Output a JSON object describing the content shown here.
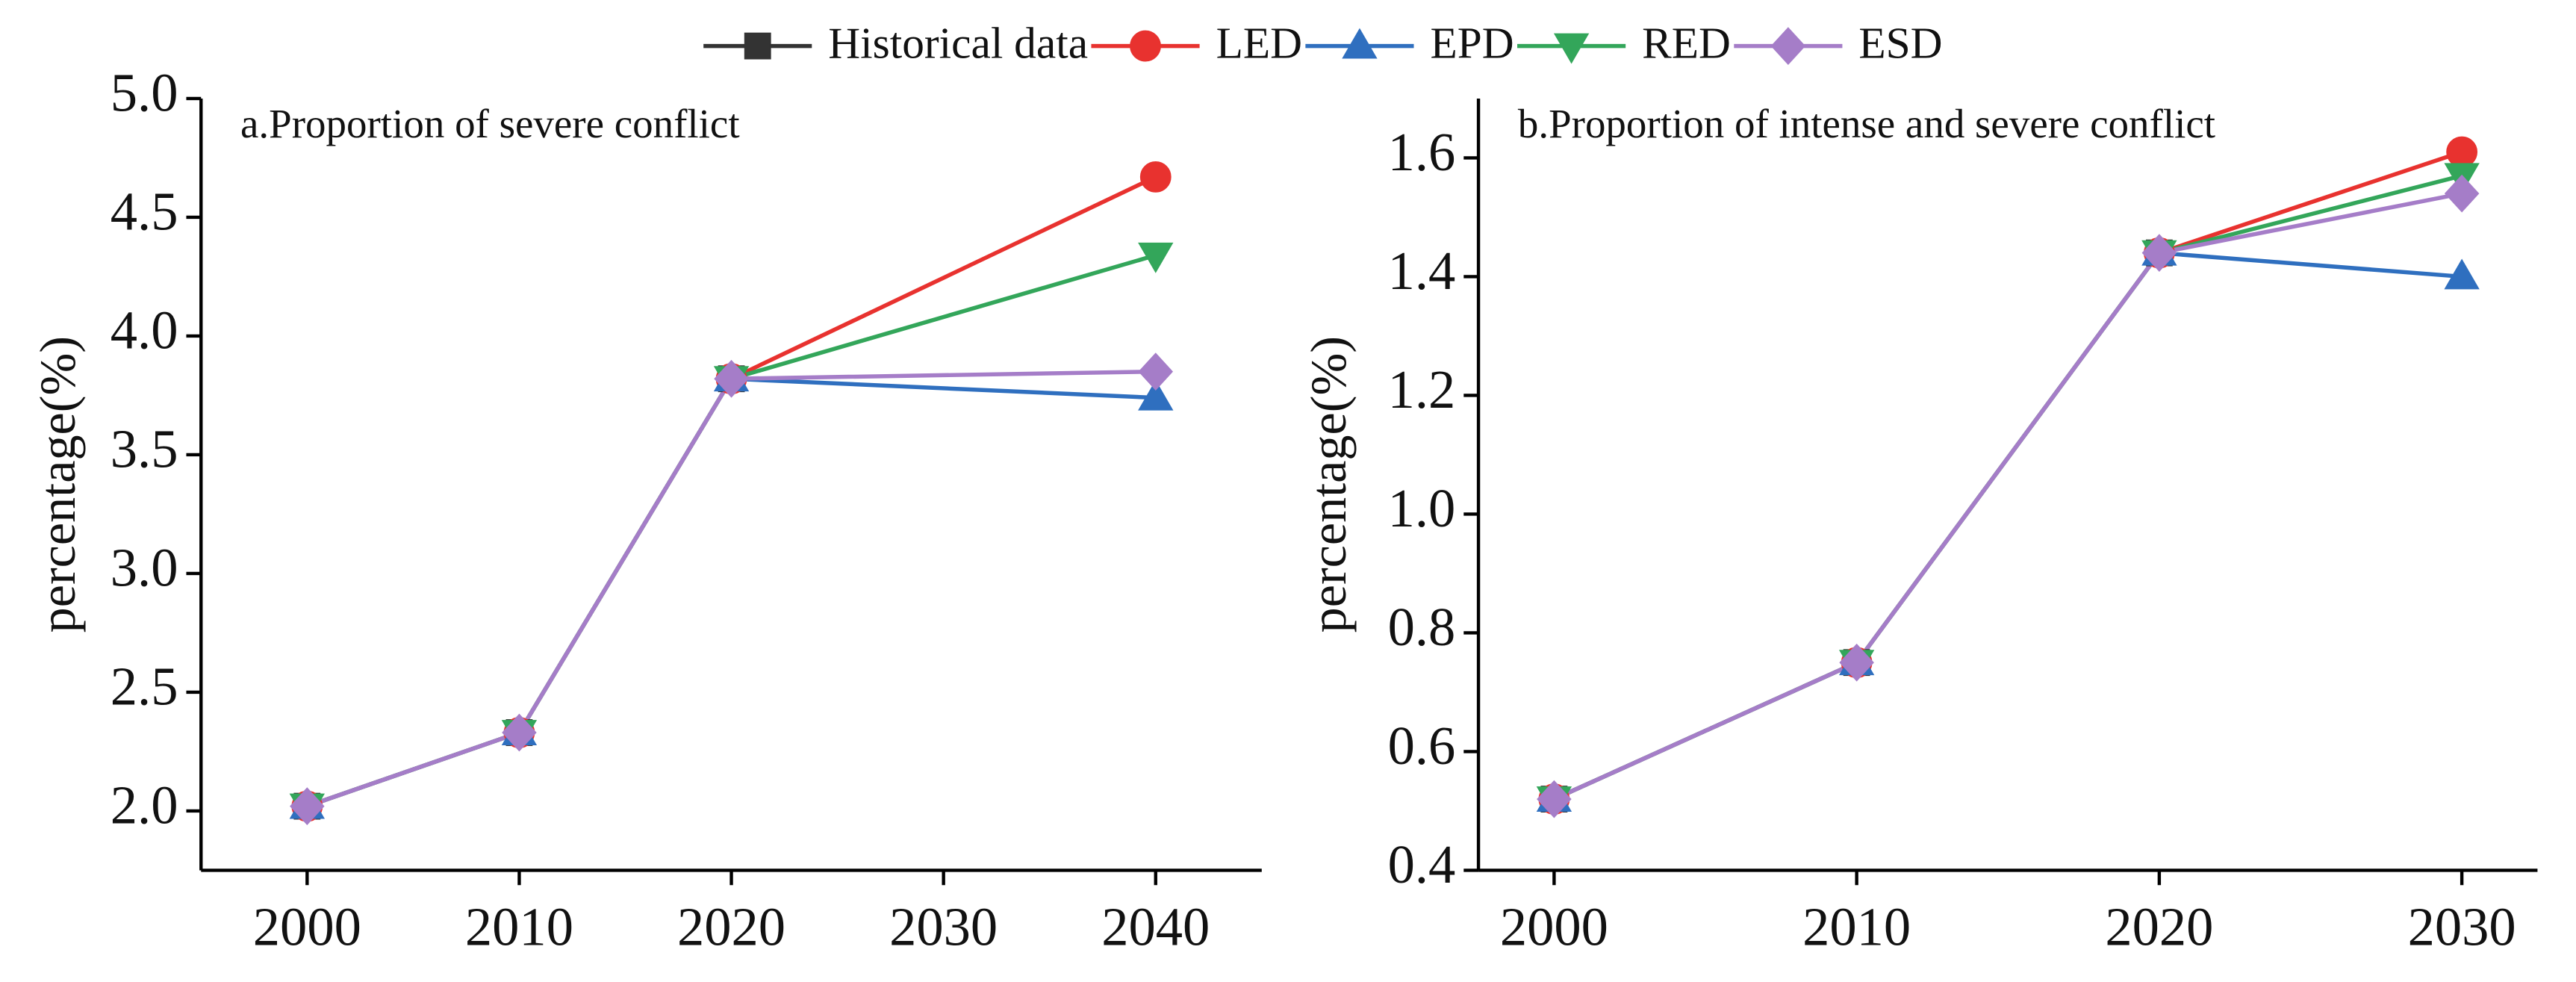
{
  "chart_data": [
    {
      "type": "line",
      "title": "a.Proportion of severe conflict",
      "y_label": "percentage(%)",
      "xlim": [
        1995,
        2045
      ],
      "xticks": [
        2000,
        2010,
        2020,
        2030,
        2040
      ],
      "ylim": [
        1.75,
        5.0
      ],
      "yticks": [
        {
          "value": 2.0,
          "label": "2.0"
        },
        2.5,
        {
          "value": 3.0,
          "label": "3.0"
        },
        3.5,
        {
          "value": 4.0,
          "label": "4.0"
        },
        4.5,
        {
          "value": 5.0,
          "label": "5.0"
        }
      ],
      "series": [
        {
          "name": "Historical data",
          "color": "#333333",
          "marker": "square",
          "x": [
            2000,
            2010,
            2020
          ],
          "values": [
            2.02,
            2.33,
            3.82
          ]
        },
        {
          "name": "LED",
          "color": "#e8322f",
          "marker": "circle",
          "x": [
            2000,
            2010,
            2020,
            2040
          ],
          "values": [
            2.02,
            2.33,
            3.82,
            4.67
          ]
        },
        {
          "name": "EPD",
          "color": "#2f6fbf",
          "marker": "triangle-up",
          "x": [
            2000,
            2010,
            2020,
            2040
          ],
          "values": [
            2.02,
            2.33,
            3.82,
            3.74
          ]
        },
        {
          "name": "RED",
          "color": "#33a65a",
          "marker": "triangle-down",
          "x": [
            2000,
            2010,
            2020,
            2040
          ],
          "values": [
            2.02,
            2.33,
            3.82,
            4.34
          ]
        },
        {
          "name": "ESD",
          "color": "#a57dc8",
          "marker": "diamond",
          "x": [
            2000,
            2010,
            2020,
            2040
          ],
          "values": [
            2.02,
            2.33,
            3.82,
            3.85
          ]
        }
      ]
    },
    {
      "type": "line",
      "title": "b.Proportion of intense and severe conflict",
      "y_label": "percentage(%)",
      "xlim": [
        1997.5,
        2032.5
      ],
      "xticks": [
        2000,
        2010,
        2020,
        2030
      ],
      "ylim": [
        0.4,
        1.7
      ],
      "yticks": [
        0.4,
        0.6,
        0.8,
        {
          "value": 1.0,
          "label": "1.0"
        },
        1.2,
        1.4,
        1.6
      ],
      "series": [
        {
          "color": "#333333",
          "marker": "square",
          "x": [
            2000,
            2010,
            2020
          ],
          "values": [
            0.52,
            0.75,
            1.44
          ]
        },
        {
          "color": "#e8322f",
          "marker": "circle",
          "x": [
            2000,
            2010,
            2020,
            2030
          ],
          "values": [
            0.52,
            0.75,
            1.44,
            1.61
          ]
        },
        {
          "color": "#2f6fbf",
          "marker": "triangle-up",
          "x": [
            2000,
            2010,
            2020,
            2030
          ],
          "values": [
            0.52,
            0.75,
            1.44,
            1.4
          ]
        },
        {
          "color": "#33a65a",
          "marker": "triangle-down",
          "x": [
            2000,
            2010,
            2020,
            2030
          ],
          "values": [
            0.52,
            0.75,
            1.44,
            1.57
          ]
        },
        {
          "color": "#a57dc8",
          "marker": "diamond",
          "x": [
            2000,
            2010,
            2020,
            2030
          ],
          "values": [
            0.52,
            0.75,
            1.44,
            1.54
          ]
        }
      ]
    }
  ]
}
